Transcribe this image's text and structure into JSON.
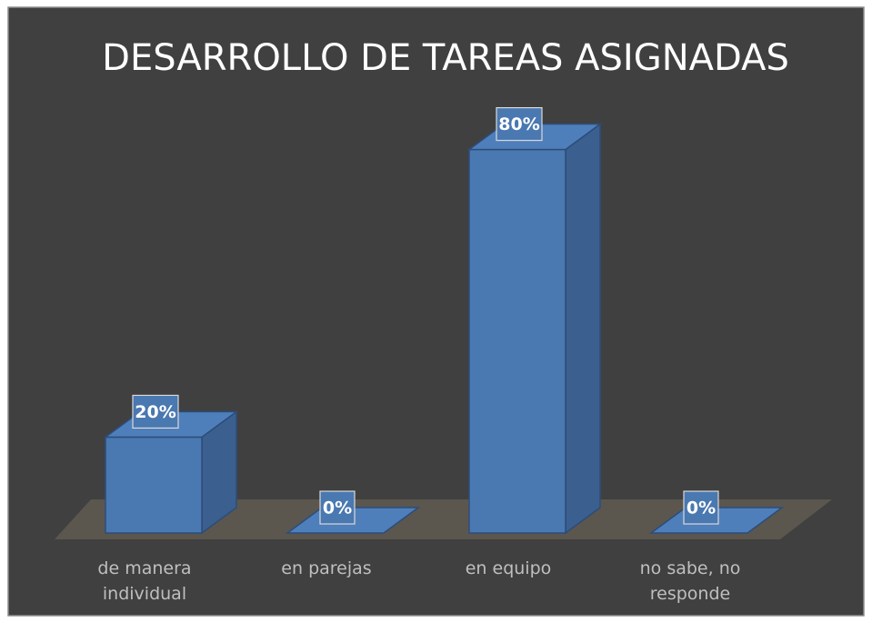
{
  "chart_data": {
    "type": "bar3d",
    "title": "DESARROLLO DE TAREAS ASIGNADAS",
    "categories": [
      "de manera individual",
      "en parejas",
      "en equipo",
      "no sabe, no responde"
    ],
    "values": [
      20,
      0,
      80,
      0
    ],
    "value_labels": [
      "20%",
      "0%",
      "80%",
      "0%"
    ],
    "color": "#4a78b0",
    "ylim": [
      0,
      100
    ]
  }
}
